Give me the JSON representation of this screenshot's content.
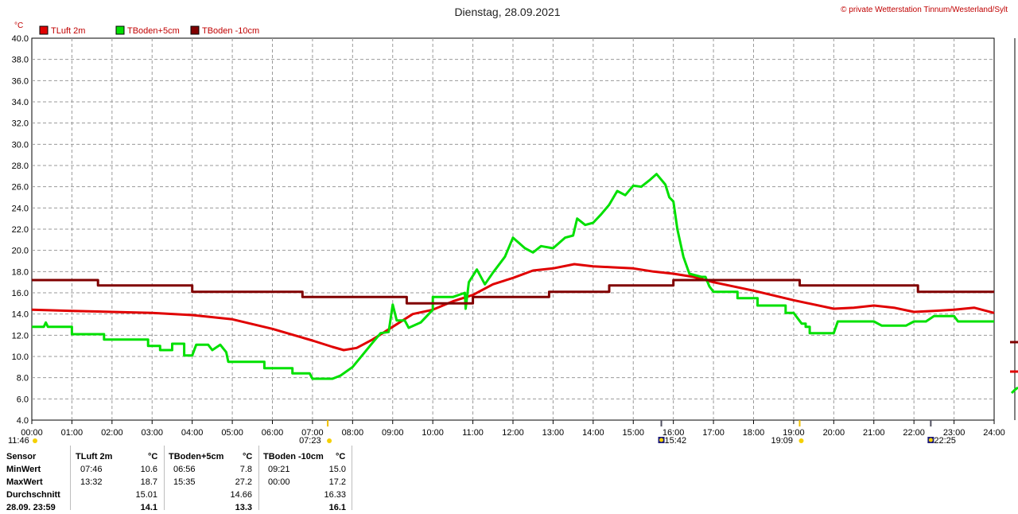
{
  "header": {
    "title": "Dienstag, 28.09.2021",
    "credit": "© private Wetterstation Tinnum/Westerland/Sylt"
  },
  "chart_data": {
    "type": "line",
    "y_unit": "°C",
    "ylim": [
      4.0,
      40.0
    ],
    "y_ticks": [
      "4.0",
      "6.0",
      "8.0",
      "10.0",
      "12.0",
      "14.0",
      "16.0",
      "18.0",
      "20.0",
      "22.0",
      "24.0",
      "26.0",
      "28.0",
      "30.0",
      "32.0",
      "34.0",
      "36.0",
      "38.0",
      "40.0"
    ],
    "xlim": [
      0,
      24
    ],
    "x_ticks": [
      "00:00",
      "01:00",
      "02:00",
      "03:00",
      "04:00",
      "05:00",
      "06:00",
      "07:00",
      "08:00",
      "09:00",
      "10:00",
      "11:00",
      "12:00",
      "13:00",
      "14:00",
      "15:00",
      "16:00",
      "17:00",
      "18:00",
      "19:00",
      "20:00",
      "21:00",
      "22:00",
      "23:00",
      "24:00"
    ],
    "grid": true,
    "legend_position": "top-left",
    "sun_markers": [
      {
        "label": "11:46",
        "time": 0.0,
        "type": "sun"
      },
      {
        "label": "07:23",
        "time": 7.38,
        "type": "sun"
      },
      {
        "label": "15:42",
        "time": 15.7,
        "type": "moon"
      },
      {
        "label": "19:09",
        "time": 19.15,
        "type": "sun"
      },
      {
        "label": "22:25",
        "time": 22.42,
        "type": "moon"
      }
    ],
    "series": [
      {
        "name": "TLuft 2m",
        "color": "#e00000",
        "points": [
          [
            0,
            14.4
          ],
          [
            1,
            14.3
          ],
          [
            2,
            14.2
          ],
          [
            3,
            14.1
          ],
          [
            4,
            13.9
          ],
          [
            5,
            13.5
          ],
          [
            6,
            12.6
          ],
          [
            7,
            11.5
          ],
          [
            7.5,
            10.9
          ],
          [
            7.78,
            10.6
          ],
          [
            8.1,
            10.8
          ],
          [
            8.5,
            11.6
          ],
          [
            9,
            12.8
          ],
          [
            9.5,
            14
          ],
          [
            10,
            14.4
          ],
          [
            10.5,
            15.2
          ],
          [
            11,
            15.8
          ],
          [
            11.5,
            16.8
          ],
          [
            12,
            17.4
          ],
          [
            12.5,
            18.1
          ],
          [
            13,
            18.3
          ],
          [
            13.53,
            18.7
          ],
          [
            14,
            18.5
          ],
          [
            14.5,
            18.4
          ],
          [
            15,
            18.3
          ],
          [
            15.5,
            18.0
          ],
          [
            16,
            17.8
          ],
          [
            16.5,
            17.5
          ],
          [
            17,
            17.0
          ],
          [
            18,
            16.2
          ],
          [
            19,
            15.3
          ],
          [
            20,
            14.5
          ],
          [
            20.5,
            14.6
          ],
          [
            21,
            14.8
          ],
          [
            21.5,
            14.6
          ],
          [
            22,
            14.2
          ],
          [
            22.5,
            14.3
          ],
          [
            23,
            14.4
          ],
          [
            23.5,
            14.6
          ],
          [
            24,
            14.1
          ]
        ]
      },
      {
        "name": "TBoden+5cm",
        "color": "#00e000",
        "points": [
          [
            0,
            12.8
          ],
          [
            0.3,
            12.8
          ],
          [
            0.35,
            13.2
          ],
          [
            0.4,
            12.8
          ],
          [
            1,
            12.8
          ],
          [
            1,
            12.1
          ],
          [
            1.8,
            12.1
          ],
          [
            1.8,
            11.6
          ],
          [
            2.9,
            11.6
          ],
          [
            2.9,
            11.0
          ],
          [
            3.2,
            11.0
          ],
          [
            3.2,
            10.6
          ],
          [
            3.5,
            10.6
          ],
          [
            3.5,
            11.2
          ],
          [
            3.8,
            11.2
          ],
          [
            3.8,
            10.1
          ],
          [
            4,
            10.1
          ],
          [
            4.1,
            11.1
          ],
          [
            4.4,
            11.1
          ],
          [
            4.5,
            10.6
          ],
          [
            4.7,
            11.1
          ],
          [
            4.85,
            10.4
          ],
          [
            4.9,
            9.5
          ],
          [
            5.8,
            9.5
          ],
          [
            5.8,
            8.9
          ],
          [
            6.5,
            8.9
          ],
          [
            6.5,
            8.4
          ],
          [
            6.93,
            8.4
          ],
          [
            7,
            7.9
          ],
          [
            7.5,
            7.9
          ],
          [
            7.7,
            8.2
          ],
          [
            8,
            9.0
          ],
          [
            8.5,
            11.3
          ],
          [
            8.7,
            12.2
          ],
          [
            8.9,
            12.3
          ],
          [
            9,
            14.9
          ],
          [
            9.1,
            13.4
          ],
          [
            9.3,
            13.4
          ],
          [
            9.4,
            12.7
          ],
          [
            9.7,
            13.2
          ],
          [
            10,
            14.4
          ],
          [
            10,
            15.6
          ],
          [
            10.5,
            15.6
          ],
          [
            10.8,
            16.0
          ],
          [
            10.82,
            14.5
          ],
          [
            10.9,
            17.0
          ],
          [
            11.1,
            18.2
          ],
          [
            11.3,
            16.8
          ],
          [
            11.5,
            17.9
          ],
          [
            11.8,
            19.4
          ],
          [
            12,
            21.2
          ],
          [
            12.3,
            20.2
          ],
          [
            12.5,
            19.8
          ],
          [
            12.7,
            20.4
          ],
          [
            13,
            20.2
          ],
          [
            13.3,
            21.2
          ],
          [
            13.5,
            21.4
          ],
          [
            13.6,
            23.0
          ],
          [
            13.8,
            22.4
          ],
          [
            14,
            22.6
          ],
          [
            14.2,
            23.4
          ],
          [
            14.4,
            24.3
          ],
          [
            14.6,
            25.6
          ],
          [
            14.8,
            25.2
          ],
          [
            15,
            26.1
          ],
          [
            15.2,
            26.0
          ],
          [
            15.4,
            26.6
          ],
          [
            15.58,
            27.2
          ],
          [
            15.8,
            26.2
          ],
          [
            15.9,
            25.0
          ],
          [
            16,
            24.6
          ],
          [
            16.1,
            22.0
          ],
          [
            16.25,
            19.4
          ],
          [
            16.4,
            17.8
          ],
          [
            16.7,
            17.5
          ],
          [
            16.8,
            17.5
          ],
          [
            16.9,
            16.6
          ],
          [
            17,
            16.1
          ],
          [
            17.6,
            16.1
          ],
          [
            17.6,
            15.5
          ],
          [
            18.1,
            15.5
          ],
          [
            18.1,
            14.8
          ],
          [
            18.8,
            14.8
          ],
          [
            18.8,
            14.1
          ],
          [
            19,
            14.1
          ],
          [
            19.2,
            13.1
          ],
          [
            19.3,
            13.1
          ],
          [
            19.3,
            12.8
          ],
          [
            19.4,
            12.8
          ],
          [
            19.4,
            12.2
          ],
          [
            20,
            12.2
          ],
          [
            20.1,
            13.3
          ],
          [
            21,
            13.3
          ],
          [
            21.2,
            12.9
          ],
          [
            21.8,
            12.9
          ],
          [
            22,
            13.3
          ],
          [
            22.3,
            13.3
          ],
          [
            22.5,
            13.8
          ],
          [
            23,
            13.8
          ],
          [
            23.1,
            13.3
          ],
          [
            24,
            13.3
          ]
        ]
      },
      {
        "name": "TBoden -10cm",
        "color": "#800000",
        "points": [
          [
            0,
            17.2
          ],
          [
            1.65,
            17.2
          ],
          [
            1.65,
            16.7
          ],
          [
            4,
            16.7
          ],
          [
            4,
            16.1
          ],
          [
            6.75,
            16.1
          ],
          [
            6.75,
            15.6
          ],
          [
            9.35,
            15.6
          ],
          [
            9.35,
            15.0
          ],
          [
            11,
            15.0
          ],
          [
            11,
            15.6
          ],
          [
            12.9,
            15.6
          ],
          [
            12.9,
            16.1
          ],
          [
            14.4,
            16.1
          ],
          [
            14.4,
            16.7
          ],
          [
            16,
            16.7
          ],
          [
            16,
            17.2
          ],
          [
            19.15,
            17.2
          ],
          [
            19.15,
            16.7
          ],
          [
            22.1,
            16.7
          ],
          [
            22.1,
            16.1
          ],
          [
            24,
            16.1
          ]
        ]
      }
    ]
  },
  "stats": {
    "headers": {
      "sensor": "Sensor",
      "s1": "TLuft 2m",
      "u1": "°C",
      "s2": "TBoden+5cm",
      "u2": "°C",
      "s3": "TBoden -10cm",
      "u3": "°C"
    },
    "rows": [
      {
        "label": "MinWert",
        "t1": "07:46",
        "v1": "10.6",
        "t2": "06:56",
        "v2": "7.8",
        "t3": "09:21",
        "v3": "15.0"
      },
      {
        "label": "MaxWert",
        "t1": "13:32",
        "v1": "18.7",
        "t2": "15:35",
        "v2": "27.2",
        "t3": "00:00",
        "v3": "17.2"
      },
      {
        "label": "Durchschnitt",
        "t1": "",
        "v1": "15.01",
        "t2": "",
        "v2": "14.66",
        "t3": "",
        "v3": "16.33"
      },
      {
        "label": "28.09. 23:59",
        "t1": "",
        "v1": "14.1",
        "t2": "",
        "v2": "13.3",
        "t3": "",
        "v3": "16.1"
      }
    ]
  }
}
